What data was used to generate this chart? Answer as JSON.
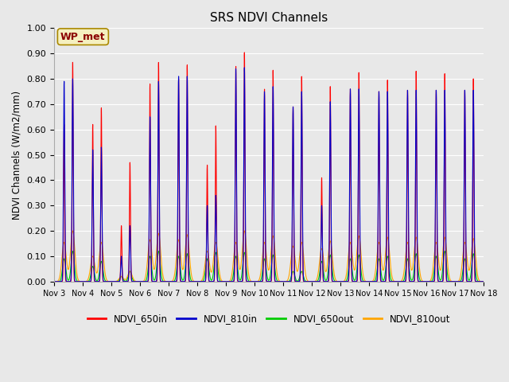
{
  "title": "SRS NDVI Channels",
  "ylabel": "NDVI Channels (W/m2/mm)",
  "ylim": [
    0.0,
    1.0
  ],
  "yticks": [
    0.0,
    0.1,
    0.2,
    0.3,
    0.4,
    0.5,
    0.6,
    0.7,
    0.8,
    0.9,
    1.0
  ],
  "background_color": "#e8e8e8",
  "grid_color": "white",
  "annotation_text": "WP_met",
  "annotation_box_color": "#f5f0c0",
  "annotation_text_color": "#8B0000",
  "colors": {
    "NDVI_650in": "#FF0000",
    "NDVI_810in": "#0000CC",
    "NDVI_650out": "#00CC00",
    "NDVI_810out": "#FFA500"
  },
  "linewidth": 0.8,
  "xtick_labels": [
    "Nov 3",
    "Nov 4",
    "Nov 5",
    "Nov 6",
    "Nov 7",
    "Nov 8",
    "Nov 9",
    "Nov 10",
    "Nov 11",
    "Nov 12",
    "Nov 13",
    "Nov 14",
    "Nov 15",
    "Nov 16",
    "Nov 17",
    "Nov 18"
  ],
  "day_peaks": {
    "0": {
      "NDVI_650in": 0.865,
      "NDVI_810in": 0.8,
      "NDVI_650out": 0.12,
      "NDVI_810out": 0.2,
      "p1_650in": 0.62,
      "p1_810in": 0.79,
      "p1_650out": 0.09,
      "p1_810out": 0.155
    },
    "1": {
      "NDVI_650in": 0.685,
      "NDVI_810in": 0.53,
      "NDVI_650out": 0.08,
      "NDVI_810out": 0.155,
      "p1_650in": 0.62,
      "p1_810in": 0.52,
      "p1_650out": 0.06,
      "p1_810out": 0.1
    },
    "2": {
      "NDVI_650in": 0.47,
      "NDVI_810in": 0.22,
      "NDVI_650out": 0.04,
      "NDVI_810out": 0.04,
      "p1_650in": 0.22,
      "p1_810in": 0.1,
      "p1_650out": 0.02,
      "p1_810out": 0.02
    },
    "3": {
      "NDVI_650in": 0.865,
      "NDVI_810in": 0.79,
      "NDVI_650out": 0.12,
      "NDVI_810out": 0.19,
      "p1_650in": 0.78,
      "p1_810in": 0.65,
      "p1_650out": 0.1,
      "p1_810out": 0.165
    },
    "4": {
      "NDVI_650in": 0.855,
      "NDVI_810in": 0.81,
      "NDVI_650out": 0.11,
      "NDVI_810out": 0.185,
      "p1_650in": 0.8,
      "p1_810in": 0.81,
      "p1_650out": 0.1,
      "p1_810out": 0.165
    },
    "5": {
      "NDVI_650in": 0.615,
      "NDVI_810in": 0.34,
      "NDVI_650out": 0.115,
      "NDVI_810out": 0.155,
      "p1_650in": 0.46,
      "p1_810in": 0.3,
      "p1_650out": 0.09,
      "p1_810out": 0.12
    },
    "6": {
      "NDVI_650in": 0.905,
      "NDVI_810in": 0.845,
      "NDVI_650out": 0.115,
      "NDVI_810out": 0.2,
      "p1_650in": 0.85,
      "p1_810in": 0.84,
      "p1_650out": 0.1,
      "p1_810out": 0.155
    },
    "7": {
      "NDVI_650in": 0.835,
      "NDVI_810in": 0.77,
      "NDVI_650out": 0.105,
      "NDVI_810out": 0.18,
      "p1_650in": 0.76,
      "p1_810in": 0.75,
      "p1_650out": 0.09,
      "p1_810out": 0.155
    },
    "8": {
      "NDVI_650in": 0.81,
      "NDVI_810in": 0.75,
      "NDVI_650out": 0.04,
      "NDVI_810out": 0.155,
      "p1_650in": 0.69,
      "p1_810in": 0.69,
      "p1_650out": 0.04,
      "p1_810out": 0.14
    },
    "9": {
      "NDVI_650in": 0.77,
      "NDVI_810in": 0.71,
      "NDVI_650out": 0.105,
      "NDVI_810out": 0.16,
      "p1_650in": 0.41,
      "p1_810in": 0.3,
      "p1_650out": 0.08,
      "p1_810out": 0.13
    },
    "10": {
      "NDVI_650in": 0.825,
      "NDVI_810in": 0.76,
      "NDVI_650out": 0.105,
      "NDVI_810out": 0.18,
      "p1_650in": 0.76,
      "p1_810in": 0.76,
      "p1_650out": 0.09,
      "p1_810out": 0.155
    },
    "11": {
      "NDVI_650in": 0.795,
      "NDVI_810in": 0.75,
      "NDVI_650out": 0.1,
      "NDVI_810out": 0.175,
      "p1_650in": 0.75,
      "p1_810in": 0.75,
      "p1_650out": 0.09,
      "p1_810out": 0.155
    },
    "12": {
      "NDVI_650in": 0.83,
      "NDVI_810in": 0.755,
      "NDVI_650out": 0.11,
      "NDVI_810out": 0.175,
      "p1_650in": 0.755,
      "p1_810in": 0.755,
      "p1_650out": 0.09,
      "p1_810out": 0.155
    },
    "13": {
      "NDVI_650in": 0.82,
      "NDVI_810in": 0.755,
      "NDVI_650out": 0.12,
      "NDVI_810out": 0.175,
      "p1_650in": 0.755,
      "p1_810in": 0.755,
      "p1_650out": 0.1,
      "p1_810out": 0.155
    },
    "14": {
      "NDVI_650in": 0.8,
      "NDVI_810in": 0.755,
      "NDVI_650out": 0.11,
      "NDVI_810out": 0.17,
      "p1_650in": 0.755,
      "p1_810in": 0.755,
      "p1_650out": 0.09,
      "p1_810out": 0.155
    }
  }
}
